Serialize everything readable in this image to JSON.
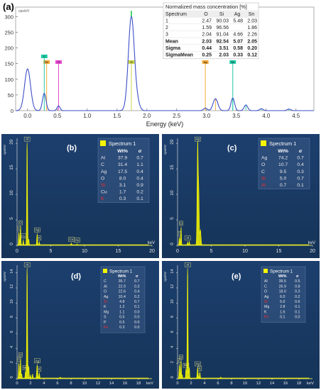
{
  "panel_a": {
    "letter": "(a)",
    "unit": "cps/eV",
    "xlabel": "Energy (keV)",
    "table": {
      "title": "Normalized mass concentration [%]",
      "headers": [
        "Spectrum",
        "O",
        "Si",
        "Ag",
        "Sn"
      ],
      "rows": [
        [
          "1",
          "2.47",
          "90.03",
          "5.48",
          "2.03"
        ],
        [
          "2",
          "1.59",
          "96.56",
          "",
          "1.86"
        ],
        [
          "3",
          "2.04",
          "91.04",
          "4.66",
          "2.26"
        ],
        [
          "Mean",
          "2.03",
          "92.54",
          "5.07",
          "2.05"
        ],
        [
          "Sigma",
          "0.44",
          "3.51",
          "0.58",
          "0.20"
        ],
        [
          "SigmaMean",
          "0.25",
          "2.03",
          "0.33",
          "0.12"
        ]
      ],
      "bold_rows": [
        "Mean",
        "Sigma",
        "SigmaMean"
      ]
    }
  },
  "panels": [
    {
      "id": "b",
      "letter": "(b)",
      "unit": "cps/eV",
      "xunit": "keV",
      "title": "Spectrum 1",
      "table_header": [
        "",
        "Wt%",
        "σ"
      ],
      "rows": [
        [
          "Al",
          "37.9",
          "0.7"
        ],
        [
          "C",
          "31.4",
          "1.1"
        ],
        [
          "Ag",
          "17.5",
          "0.4"
        ],
        [
          "O",
          "8.0",
          "0.4"
        ],
        [
          "Si",
          "3.1",
          "0.9"
        ],
        [
          "Cu",
          "1.7",
          "0.2"
        ],
        [
          "K",
          "0.3",
          "0.1"
        ]
      ]
    },
    {
      "id": "c",
      "letter": "(c)",
      "unit": "cps/eV",
      "xunit": "keV",
      "title": "Spectrum 1",
      "table_header": [
        "",
        "Wt%",
        "σ"
      ],
      "rows": [
        [
          "Ag",
          "74.2",
          "0.7"
        ],
        [
          "O",
          "10.7",
          "0.4"
        ],
        [
          "C",
          "9.5",
          "0.3"
        ],
        [
          "Si",
          "5.0",
          "0.7"
        ],
        [
          "Al",
          "0.7",
          "0.1"
        ]
      ]
    },
    {
      "id": "d",
      "letter": "(d)",
      "unit": "cps/eV",
      "xunit": "keV",
      "title": "Spectrum 1",
      "table_header": [
        "",
        "Wt%",
        "σ"
      ],
      "rows": [
        [
          "C",
          "35.7",
          "0.7"
        ],
        [
          "Al",
          "22.9",
          "0.3"
        ],
        [
          "O",
          "22.6",
          "0.4"
        ],
        [
          "Ag",
          "10.4",
          "0.2"
        ],
        [
          "Si",
          "4.8",
          "0.7"
        ],
        [
          "K",
          "1.2",
          "0.1"
        ],
        [
          "Mg",
          "1.1",
          "0.0"
        ],
        [
          "S",
          "0.5",
          "0.0"
        ],
        [
          "P",
          "0.5",
          "0.0"
        ],
        [
          "Fe",
          "0.3",
          "0.0"
        ]
      ]
    },
    {
      "id": "e",
      "letter": "(e)",
      "unit": "cps/eV",
      "xunit": "keV",
      "title": "Spectrum 1",
      "table_header": [
        "",
        "Wt%",
        "σ"
      ],
      "rows": [
        [
          "Al",
          "39.5",
          "0.5"
        ],
        [
          "C",
          "26.9",
          "0.8"
        ],
        [
          "O",
          "18.0",
          "0.3"
        ],
        [
          "Ag",
          "6.0",
          "0.2"
        ],
        [
          "Si",
          "5.0",
          "0.6"
        ],
        [
          "Mg",
          "2.8",
          "0.1"
        ],
        [
          "K",
          "1.6",
          "0.1"
        ],
        [
          "Fe",
          "0.1",
          "0.0"
        ]
      ]
    }
  ],
  "chart_data": [
    {
      "type": "line",
      "panel": "a",
      "xlabel": "Energy (keV)",
      "ylabel": "cps/eV",
      "xlim": [
        -0.2,
        4.8
      ],
      "ylim": [
        0,
        330
      ],
      "xticks": [
        "0.0",
        "0.5",
        "1.0",
        "1.5",
        "2.0",
        "2.5",
        "3.0",
        "3.5",
        "4.0",
        "4.5"
      ],
      "yticks": [
        "0",
        "50",
        "100",
        "150",
        "200",
        "250",
        "300"
      ],
      "peaks": [
        {
          "x": 0.0,
          "y": 133,
          "w": 0.05
        },
        {
          "x": 0.28,
          "y": 55,
          "w": 0.03
        },
        {
          "x": 0.52,
          "y": 15,
          "w": 0.025
        },
        {
          "x": 1.74,
          "y": 300,
          "w": 0.05
        },
        {
          "x": 1.84,
          "y": 22,
          "w": 0.04
        },
        {
          "x": 2.98,
          "y": 8,
          "w": 0.03
        },
        {
          "x": 3.15,
          "y": 38,
          "w": 0.04
        },
        {
          "x": 3.44,
          "y": 40,
          "w": 0.03
        },
        {
          "x": 3.66,
          "y": 18,
          "w": 0.03
        },
        {
          "x": 3.92,
          "y": 6,
          "w": 0.03
        },
        {
          "x": 4.38,
          "y": 5,
          "w": 0.03
        }
      ],
      "markers": [
        {
          "label": "Sn",
          "x": 0.32,
          "color": "#f2a93b"
        },
        {
          "label": "C",
          "x": 0.28,
          "color": "#21c9a5"
        },
        {
          "label": "O",
          "x": 0.52,
          "color": "#e64ad0"
        },
        {
          "label": "Si",
          "x": 1.74,
          "color": "#c9d34a"
        },
        {
          "label": "Ag",
          "x": 2.98,
          "color": "#f2a93b"
        },
        {
          "label": "Sn",
          "x": 3.44,
          "color": "#21c9a5"
        }
      ],
      "colors": {
        "line": "#3d4fc8",
        "cyan": "#21c9a5",
        "orange": "#f2a93b"
      }
    },
    {
      "type": "line",
      "panel": "b",
      "ylabel": "cps/eV",
      "xunit": "keV",
      "xlim": [
        0,
        20
      ],
      "ylim": [
        0,
        21
      ],
      "xticks": [
        "0",
        "5",
        "10",
        "15",
        "20"
      ],
      "yticks": [
        "0",
        "5",
        "10",
        "15",
        "20"
      ],
      "peaks": [
        {
          "x": 0.28,
          "y": 2.5,
          "w": 0.06
        },
        {
          "x": 0.52,
          "y": 3.6,
          "w": 0.05
        },
        {
          "x": 0.93,
          "y": 1.0,
          "w": 0.05
        },
        {
          "x": 1.74,
          "y": 1.2,
          "w": 0.05
        },
        {
          "x": 1.49,
          "y": 20.0,
          "w": 0.06
        },
        {
          "x": 2.98,
          "y": 2.2,
          "w": 0.06
        },
        {
          "x": 3.3,
          "y": 0.6,
          "w": 0.05
        },
        {
          "x": 8.04,
          "y": 0.35,
          "w": 0.08
        },
        {
          "x": 8.9,
          "y": 0.2,
          "w": 0.08
        }
      ],
      "markers": [
        {
          "label": "Al",
          "x": 1.49,
          "y": 20.0
        },
        {
          "label": "O",
          "x": 0.52,
          "y": 3.6
        },
        {
          "label": "C",
          "x": 0.28,
          "y": 2.5
        },
        {
          "label": "Cu",
          "x": 0.93,
          "y": 1.0
        },
        {
          "label": "Ag",
          "x": 2.98,
          "y": 2.2
        },
        {
          "label": "K",
          "x": 3.3,
          "y": 0.6
        },
        {
          "label": "Cu",
          "x": 8.04,
          "y": 0.35
        },
        {
          "label": "Cu",
          "x": 8.9,
          "y": 0.2
        }
      ]
    },
    {
      "type": "line",
      "panel": "c",
      "ylabel": "cps/eV",
      "xunit": "keV",
      "xlim": [
        0,
        20
      ],
      "ylim": [
        0,
        21
      ],
      "xticks": [
        "0",
        "5",
        "10",
        "15",
        "20"
      ],
      "yticks": [
        "0",
        "5",
        "10",
        "15",
        "20"
      ],
      "peaks": [
        {
          "x": 0.28,
          "y": 1.5,
          "w": 0.06
        },
        {
          "x": 0.52,
          "y": 3.5,
          "w": 0.05
        },
        {
          "x": 1.49,
          "y": 0.6,
          "w": 0.05
        },
        {
          "x": 1.74,
          "y": 0.8,
          "w": 0.05
        },
        {
          "x": 2.98,
          "y": 20.0,
          "w": 0.08
        },
        {
          "x": 3.15,
          "y": 9.0,
          "w": 0.07
        },
        {
          "x": 3.4,
          "y": 3.0,
          "w": 0.08
        }
      ],
      "markers": [
        {
          "label": "Ag",
          "x": 2.98,
          "y": 20.0
        },
        {
          "label": "C",
          "x": 0.28,
          "y": 1.5
        },
        {
          "label": "O",
          "x": 0.52,
          "y": 3.5
        },
        {
          "label": "Al",
          "x": 1.49,
          "y": 0.6
        }
      ]
    },
    {
      "type": "line",
      "panel": "d",
      "ylabel": "cps/eV",
      "xunit": "keV",
      "xlim": [
        0,
        20
      ],
      "ylim": [
        0,
        15
      ],
      "xticks": [
        "0",
        "2",
        "4",
        "6",
        "8",
        "10",
        "12",
        "14",
        "16",
        "18",
        "keV"
      ],
      "yticks": [
        "0",
        "2",
        "4",
        "6",
        "8",
        "10",
        "12",
        "14"
      ],
      "peaks": [
        {
          "x": 0.28,
          "y": 2.0,
          "w": 0.06
        },
        {
          "x": 0.52,
          "y": 2.6,
          "w": 0.05
        },
        {
          "x": 0.7,
          "y": 0.6,
          "w": 0.04
        },
        {
          "x": 1.25,
          "y": 0.9,
          "w": 0.05
        },
        {
          "x": 1.49,
          "y": 14.5,
          "w": 0.06
        },
        {
          "x": 1.74,
          "y": 1.6,
          "w": 0.05
        },
        {
          "x": 2.01,
          "y": 0.5,
          "w": 0.05
        },
        {
          "x": 2.31,
          "y": 0.6,
          "w": 0.05
        },
        {
          "x": 2.98,
          "y": 1.8,
          "w": 0.07
        },
        {
          "x": 3.3,
          "y": 0.7,
          "w": 0.06
        },
        {
          "x": 6.4,
          "y": 0.2,
          "w": 0.08
        }
      ],
      "markers": [
        {
          "label": "Al",
          "x": 1.49,
          "y": 14.5
        },
        {
          "label": "C",
          "x": 0.28,
          "y": 2.0
        },
        {
          "label": "O",
          "x": 0.52,
          "y": 2.6
        },
        {
          "label": "Mg",
          "x": 1.25,
          "y": 0.9
        },
        {
          "label": "Ag",
          "x": 2.98,
          "y": 1.8
        },
        {
          "label": "K",
          "x": 3.3,
          "y": 0.7
        }
      ]
    },
    {
      "type": "line",
      "panel": "e",
      "ylabel": "cps/eV",
      "xunit": "keV",
      "xlim": [
        0,
        20
      ],
      "ylim": [
        0,
        15
      ],
      "xticks": [
        "0",
        "2",
        "4",
        "6",
        "8",
        "10",
        "12",
        "14",
        "16",
        "18",
        "keV"
      ],
      "yticks": [
        "0",
        "2",
        "4",
        "6",
        "8",
        "10",
        "12",
        "14"
      ],
      "peaks": [
        {
          "x": 0.28,
          "y": 1.8,
          "w": 0.06
        },
        {
          "x": 0.52,
          "y": 2.3,
          "w": 0.05
        },
        {
          "x": 0.7,
          "y": 0.5,
          "w": 0.04
        },
        {
          "x": 1.25,
          "y": 1.2,
          "w": 0.05
        },
        {
          "x": 1.49,
          "y": 14.5,
          "w": 0.06
        },
        {
          "x": 1.74,
          "y": 1.5,
          "w": 0.05
        },
        {
          "x": 2.98,
          "y": 1.4,
          "w": 0.07
        },
        {
          "x": 3.3,
          "y": 0.8,
          "w": 0.06
        },
        {
          "x": 6.4,
          "y": 0.2,
          "w": 0.08
        }
      ],
      "markers": [
        {
          "label": "Al",
          "x": 1.49,
          "y": 14.5
        },
        {
          "label": "C",
          "x": 0.28,
          "y": 1.8
        },
        {
          "label": "O",
          "x": 0.52,
          "y": 2.3
        },
        {
          "label": "Mg",
          "x": 1.25,
          "y": 1.2
        },
        {
          "label": "Ag",
          "x": 2.98,
          "y": 1.4
        },
        {
          "label": "K",
          "x": 3.3,
          "y": 0.8
        }
      ]
    }
  ],
  "colors": {
    "eds_bg": "#1c3f6e",
    "eds_bg2": "#163458",
    "eds_text": "#e8e8e8",
    "eds_trace": "#f5f500",
    "eds_axis": "#d9d9d9",
    "red_label": "#ff2a2a"
  }
}
